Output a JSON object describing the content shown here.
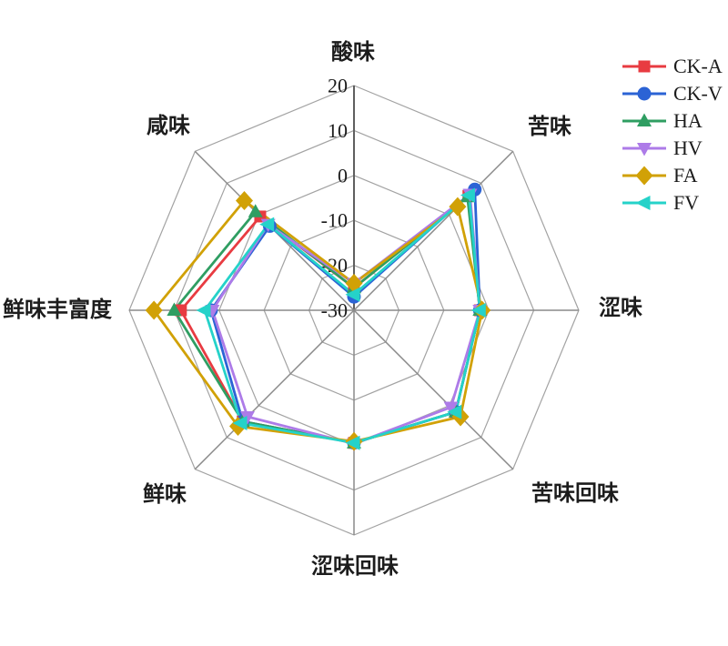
{
  "chart_data": {
    "type": "radar",
    "title": "",
    "categories": [
      "酸味",
      "苦味",
      "涩味",
      "苦味回味",
      "涩味回味",
      "鲜味",
      "鲜味丰富度",
      "咸味"
    ],
    "axis": {
      "min": -30,
      "max": 20,
      "ticks": [
        20,
        10,
        0,
        -10,
        -20,
        -30
      ],
      "rings": [
        -20,
        -10,
        0,
        10,
        20
      ]
    },
    "grid": true,
    "legend_position": "top-right",
    "series": [
      {
        "name": "CK-A",
        "color": "#e83b41",
        "marker": "square",
        "values": [
          -25,
          6,
          -2,
          2,
          -0.5,
          5,
          8.5,
          -0.5
        ]
      },
      {
        "name": "CK-V",
        "color": "#2b63d5",
        "marker": "circle",
        "values": [
          -27,
          8,
          -2,
          2,
          -0.5,
          5,
          1.8,
          -3.5
        ]
      },
      {
        "name": "HA",
        "color": "#2f9e62",
        "marker": "triangle-up",
        "values": [
          -25,
          5.7,
          -2,
          2,
          -0.5,
          5,
          10,
          1
        ]
      },
      {
        "name": "HV",
        "color": "#ad7be8",
        "marker": "triangle-down",
        "values": [
          -24,
          6.5,
          -2,
          0.5,
          -0.3,
          3.5,
          1.5,
          -3
        ]
      },
      {
        "name": "FA",
        "color": "#d1a106",
        "marker": "diamond",
        "values": [
          -24,
          2.6,
          -1.5,
          3.5,
          -0.8,
          6.5,
          14.5,
          4.5
        ]
      },
      {
        "name": "FV",
        "color": "#25d2c9",
        "marker": "triangle-left",
        "values": [
          -26.5,
          6.2,
          -2,
          2,
          -0.5,
          5.5,
          3.2,
          -3
        ]
      }
    ],
    "colors": {
      "grid_ring": "#a3a3a3",
      "grid_spoke": "#8a8a8a",
      "main_axis": "#5f5f5f",
      "text": "#1c1c1c",
      "background": "#ffffff"
    }
  }
}
